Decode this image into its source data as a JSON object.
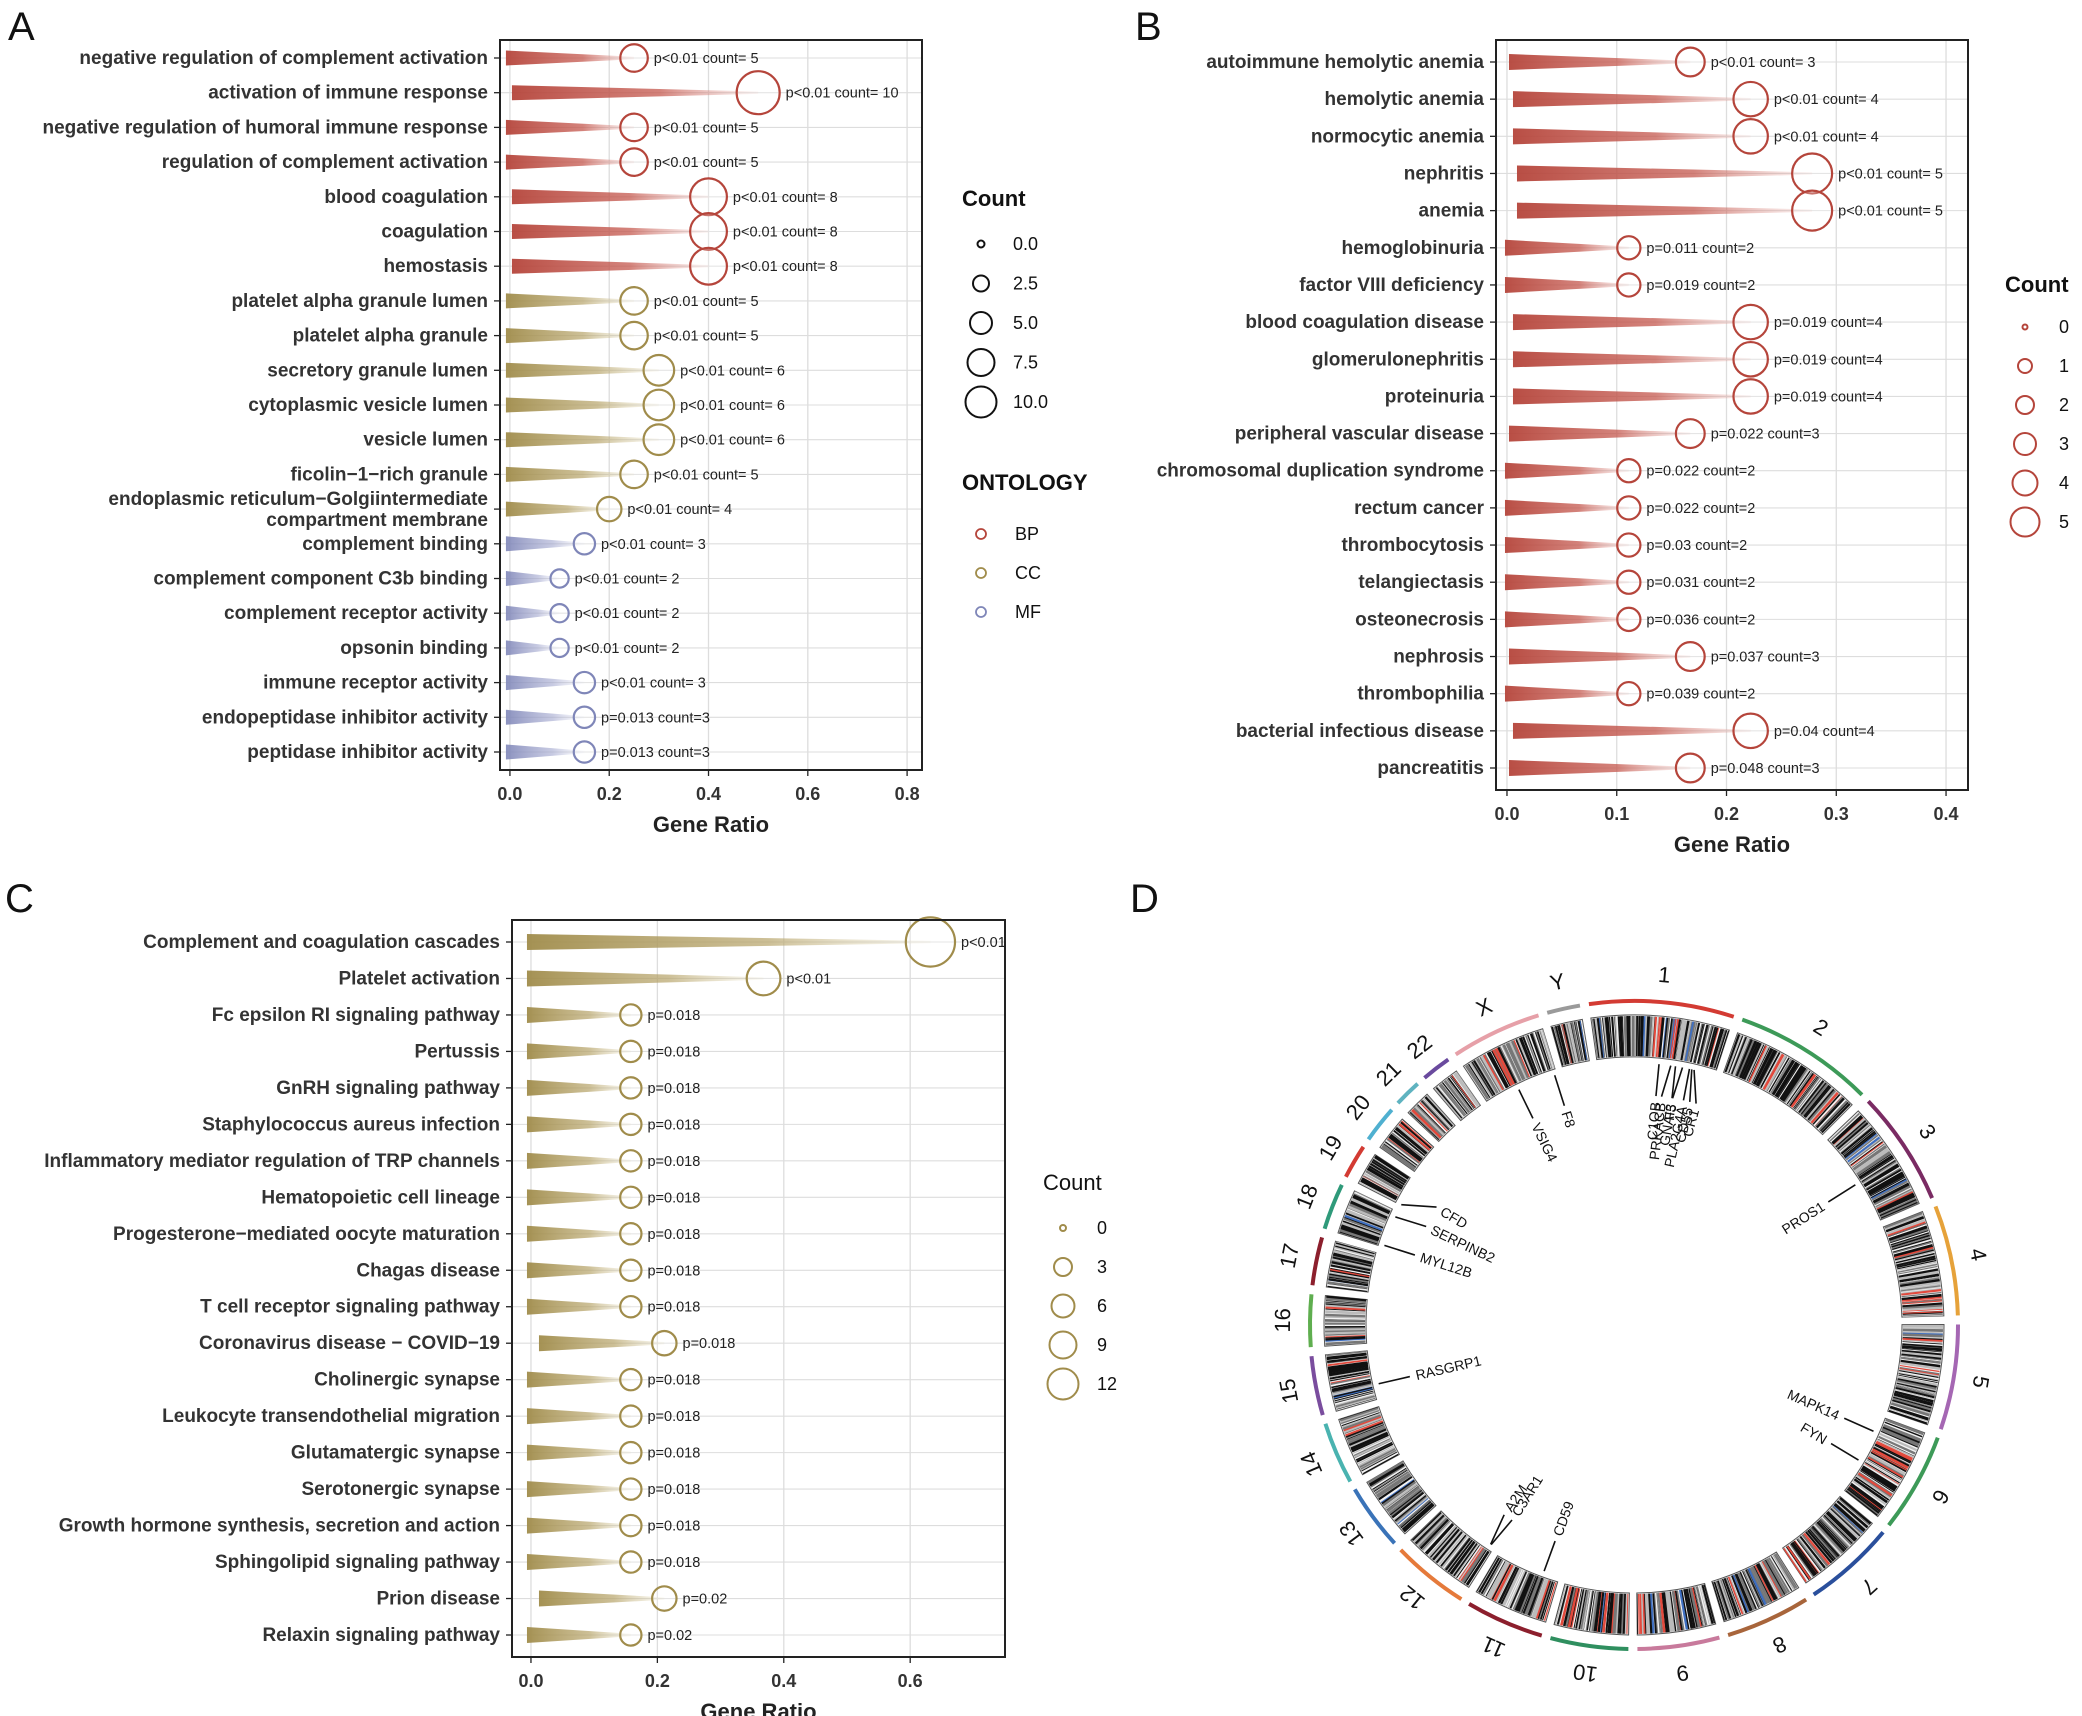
{
  "colors": {
    "BP": "#b5453b",
    "CC": "#a08c4b",
    "MF": "#7f86b8",
    "grid": "#dddddd",
    "frame": "#222222"
  },
  "chart_data": [
    {
      "panel": "A",
      "type": "scatter",
      "xlabel": "Gene Ratio",
      "xlim": [
        -0.02,
        0.83
      ],
      "ticks": [
        "0.0",
        "0.2",
        "0.4",
        "0.6",
        "0.8"
      ],
      "tick_values": [
        0,
        0.2,
        0.4,
        0.6,
        0.8
      ],
      "legend_count_title": "Count",
      "legend_count_labels": [
        "0.0",
        "2.5",
        "5.0",
        "7.5",
        "10.0"
      ],
      "legend_ont_title": "ONTOLOGY",
      "legend_ont_labels": [
        "BP",
        "CC",
        "MF"
      ],
      "rows": [
        {
          "term": "negative regulation of complement activation",
          "ratio": 0.25,
          "count": 5,
          "ann": "p<0.01 count= 5",
          "ont": "BP"
        },
        {
          "term": "activation of immune response",
          "ratio": 0.5,
          "count": 10,
          "ann": "p<0.01 count= 10",
          "ont": "BP"
        },
        {
          "term": "negative regulation of humoral immune response",
          "ratio": 0.25,
          "count": 5,
          "ann": "p<0.01 count= 5",
          "ont": "BP"
        },
        {
          "term": "regulation of complement activation",
          "ratio": 0.25,
          "count": 5,
          "ann": "p<0.01 count= 5",
          "ont": "BP"
        },
        {
          "term": "blood coagulation",
          "ratio": 0.4,
          "count": 8,
          "ann": "p<0.01 count= 8",
          "ont": "BP"
        },
        {
          "term": "coagulation",
          "ratio": 0.4,
          "count": 8,
          "ann": "p<0.01 count= 8",
          "ont": "BP"
        },
        {
          "term": "hemostasis",
          "ratio": 0.4,
          "count": 8,
          "ann": "p<0.01 count= 8",
          "ont": "BP"
        },
        {
          "term": "platelet alpha granule lumen",
          "ratio": 0.25,
          "count": 5,
          "ann": "p<0.01 count= 5",
          "ont": "CC"
        },
        {
          "term": "platelet alpha granule",
          "ratio": 0.25,
          "count": 5,
          "ann": "p<0.01 count= 5",
          "ont": "CC"
        },
        {
          "term": "secretory granule lumen",
          "ratio": 0.3,
          "count": 6,
          "ann": "p<0.01 count= 6",
          "ont": "CC"
        },
        {
          "term": "cytoplasmic vesicle lumen",
          "ratio": 0.3,
          "count": 6,
          "ann": "p<0.01 count= 6",
          "ont": "CC"
        },
        {
          "term": "vesicle lumen",
          "ratio": 0.3,
          "count": 6,
          "ann": "p<0.01 count= 6",
          "ont": "CC"
        },
        {
          "term": "ficolin−1−rich granule",
          "ratio": 0.25,
          "count": 5,
          "ann": "p<0.01 count= 5",
          "ont": "CC"
        },
        {
          "term": "endoplasmic reticulum−Golgiintermediate compartment membrane",
          "term_lines": [
            "endoplasmic reticulum−Golgiintermediate",
            "compartment membrane"
          ],
          "ratio": 0.2,
          "count": 4,
          "ann": "p<0.01 count= 4",
          "ont": "CC"
        },
        {
          "term": "complement binding",
          "ratio": 0.15,
          "count": 3,
          "ann": "p<0.01 count= 3",
          "ont": "MF"
        },
        {
          "term": "complement component C3b binding",
          "ratio": 0.1,
          "count": 2,
          "ann": "p<0.01 count= 2",
          "ont": "MF"
        },
        {
          "term": "complement receptor activity",
          "ratio": 0.1,
          "count": 2,
          "ann": "p<0.01 count= 2",
          "ont": "MF"
        },
        {
          "term": "opsonin binding",
          "ratio": 0.1,
          "count": 2,
          "ann": "p<0.01 count= 2",
          "ont": "MF"
        },
        {
          "term": "immune receptor activity",
          "ratio": 0.15,
          "count": 3,
          "ann": "p<0.01 count= 3",
          "ont": "MF"
        },
        {
          "term": "endopeptidase inhibitor activity",
          "ratio": 0.15,
          "count": 3,
          "ann": "p=0.013 count=3",
          "ont": "MF"
        },
        {
          "term": "peptidase inhibitor activity",
          "ratio": 0.15,
          "count": 3,
          "ann": "p=0.013 count=3",
          "ont": "MF"
        }
      ]
    },
    {
      "panel": "B",
      "type": "scatter",
      "xlabel": "Gene Ratio",
      "xlim": [
        -0.01,
        0.42
      ],
      "ticks": [
        "0.0",
        "0.1",
        "0.2",
        "0.3",
        "0.4"
      ],
      "tick_values": [
        0,
        0.1,
        0.2,
        0.3,
        0.4
      ],
      "legend_count_title": "Count",
      "legend_count_labels": [
        "0",
        "1",
        "2",
        "3",
        "4",
        "5"
      ],
      "rows": [
        {
          "term": "autoimmune hemolytic anemia",
          "ratio": 0.167,
          "count": 3,
          "ann": "p<0.01 count= 3"
        },
        {
          "term": "hemolytic anemia",
          "ratio": 0.222,
          "count": 4,
          "ann": "p<0.01 count= 4"
        },
        {
          "term": "normocytic anemia",
          "ratio": 0.222,
          "count": 4,
          "ann": "p<0.01 count= 4"
        },
        {
          "term": "nephritis",
          "ratio": 0.278,
          "count": 5,
          "ann": "p<0.01 count= 5"
        },
        {
          "term": "anemia",
          "ratio": 0.278,
          "count": 5,
          "ann": "p<0.01 count= 5"
        },
        {
          "term": "hemoglobinuria",
          "ratio": 0.111,
          "count": 2,
          "ann": "p=0.011 count=2"
        },
        {
          "term": "factor VIII deficiency",
          "ratio": 0.111,
          "count": 2,
          "ann": "p=0.019 count=2"
        },
        {
          "term": "blood coagulation disease",
          "ratio": 0.222,
          "count": 4,
          "ann": "p=0.019 count=4"
        },
        {
          "term": "glomerulonephritis",
          "ratio": 0.222,
          "count": 4,
          "ann": "p=0.019 count=4"
        },
        {
          "term": "proteinuria",
          "ratio": 0.222,
          "count": 4,
          "ann": "p=0.019 count=4"
        },
        {
          "term": "peripheral vascular disease",
          "ratio": 0.167,
          "count": 3,
          "ann": "p=0.022 count=3"
        },
        {
          "term": "chromosomal duplication syndrome",
          "ratio": 0.111,
          "count": 2,
          "ann": "p=0.022 count=2"
        },
        {
          "term": "rectum cancer",
          "ratio": 0.111,
          "count": 2,
          "ann": "p=0.022 count=2"
        },
        {
          "term": "thrombocytosis",
          "ratio": 0.111,
          "count": 2,
          "ann": "p=0.03 count=2"
        },
        {
          "term": "telangiectasis",
          "ratio": 0.111,
          "count": 2,
          "ann": "p=0.031 count=2"
        },
        {
          "term": "osteonecrosis",
          "ratio": 0.111,
          "count": 2,
          "ann": "p=0.036 count=2"
        },
        {
          "term": "nephrosis",
          "ratio": 0.167,
          "count": 3,
          "ann": "p=0.037 count=3"
        },
        {
          "term": "thrombophilia",
          "ratio": 0.111,
          "count": 2,
          "ann": "p=0.039 count=2"
        },
        {
          "term": "bacterial infectious disease",
          "ratio": 0.222,
          "count": 4,
          "ann": "p=0.04 count=4"
        },
        {
          "term": "pancreatitis",
          "ratio": 0.167,
          "count": 3,
          "ann": "p=0.048 count=3"
        }
      ]
    },
    {
      "panel": "C",
      "type": "scatter",
      "xlabel": "Gene Ratio",
      "xlim": [
        -0.03,
        0.75
      ],
      "ticks": [
        "0.0",
        "0.2",
        "0.4",
        "0.6"
      ],
      "tick_values": [
        0,
        0.2,
        0.4,
        0.6
      ],
      "legend_count_title": "Count",
      "legend_count_labels": [
        "0",
        "3",
        "6",
        "9",
        "12"
      ],
      "rows": [
        {
          "term": "Complement and coagulation cascades",
          "ratio": 0.632,
          "count": 12,
          "ann": "p<0.01"
        },
        {
          "term": "Platelet activation",
          "ratio": 0.368,
          "count": 7,
          "ann": "p<0.01"
        },
        {
          "term": "Fc epsilon RI signaling pathway",
          "ratio": 0.158,
          "count": 3,
          "ann": "p=0.018"
        },
        {
          "term": "Pertussis",
          "ratio": 0.158,
          "count": 3,
          "ann": "p=0.018"
        },
        {
          "term": "GnRH signaling pathway",
          "ratio": 0.158,
          "count": 3,
          "ann": "p=0.018"
        },
        {
          "term": "Staphylococcus aureus infection",
          "ratio": 0.158,
          "count": 3,
          "ann": "p=0.018"
        },
        {
          "term": "Inflammatory mediator regulation of TRP channels",
          "ratio": 0.158,
          "count": 3,
          "ann": "p=0.018"
        },
        {
          "term": "Hematopoietic cell lineage",
          "ratio": 0.158,
          "count": 3,
          "ann": "p=0.018"
        },
        {
          "term": "Progesterone−mediated oocyte maturation",
          "ratio": 0.158,
          "count": 3,
          "ann": "p=0.018"
        },
        {
          "term": "Chagas disease",
          "ratio": 0.158,
          "count": 3,
          "ann": "p=0.018"
        },
        {
          "term": "T cell receptor signaling pathway",
          "ratio": 0.158,
          "count": 3,
          "ann": "p=0.018"
        },
        {
          "term": "Coronavirus disease − COVID−19",
          "ratio": 0.211,
          "count": 4,
          "ann": "p=0.018"
        },
        {
          "term": "Cholinergic synapse",
          "ratio": 0.158,
          "count": 3,
          "ann": "p=0.018"
        },
        {
          "term": "Leukocyte transendothelial migration",
          "ratio": 0.158,
          "count": 3,
          "ann": "p=0.018"
        },
        {
          "term": "Glutamatergic synapse",
          "ratio": 0.158,
          "count": 3,
          "ann": "p=0.018"
        },
        {
          "term": "Serotonergic synapse",
          "ratio": 0.158,
          "count": 3,
          "ann": "p=0.018"
        },
        {
          "term": "Growth hormone synthesis, secretion and action",
          "ratio": 0.158,
          "count": 3,
          "ann": "p=0.018"
        },
        {
          "term": "Sphingolipid signaling pathway",
          "ratio": 0.158,
          "count": 3,
          "ann": "p=0.018"
        },
        {
          "term": "Prion disease",
          "ratio": 0.211,
          "count": 4,
          "ann": "p=0.02"
        },
        {
          "term": "Relaxin signaling pathway",
          "ratio": 0.158,
          "count": 3,
          "ann": "p=0.02"
        }
      ]
    },
    {
      "panel": "D",
      "type": "circos",
      "chromosomes": [
        "1",
        "2",
        "3",
        "4",
        "5",
        "6",
        "7",
        "8",
        "9",
        "10",
        "11",
        "12",
        "13",
        "14",
        "15",
        "16",
        "17",
        "18",
        "19",
        "20",
        "21",
        "22",
        "X",
        "Y"
      ],
      "genes": [
        {
          "name": "C1QB",
          "chrom": "1"
        },
        {
          "name": "PRKACB",
          "chrom": "1"
        },
        {
          "name": "GNAI3",
          "chrom": "1"
        },
        {
          "name": "F5",
          "chrom": "1"
        },
        {
          "name": "PLA2G4A",
          "chrom": "1"
        },
        {
          "name": "CD55",
          "chrom": "1"
        },
        {
          "name": "CR1",
          "chrom": "1"
        },
        {
          "name": "PROS1",
          "chrom": "3"
        },
        {
          "name": "MAPK14",
          "chrom": "6"
        },
        {
          "name": "FYN",
          "chrom": "6"
        },
        {
          "name": "CD59",
          "chrom": "11"
        },
        {
          "name": "C3AR1",
          "chrom": "12"
        },
        {
          "name": "A2M",
          "chrom": "12"
        },
        {
          "name": "RASGRP1",
          "chrom": "15"
        },
        {
          "name": "MYL12B",
          "chrom": "18"
        },
        {
          "name": "SERPINB2",
          "chrom": "18"
        },
        {
          "name": "CFD",
          "chrom": "19"
        },
        {
          "name": "VSIG4",
          "chrom": "X"
        },
        {
          "name": "F8",
          "chrom": "X"
        }
      ]
    }
  ]
}
